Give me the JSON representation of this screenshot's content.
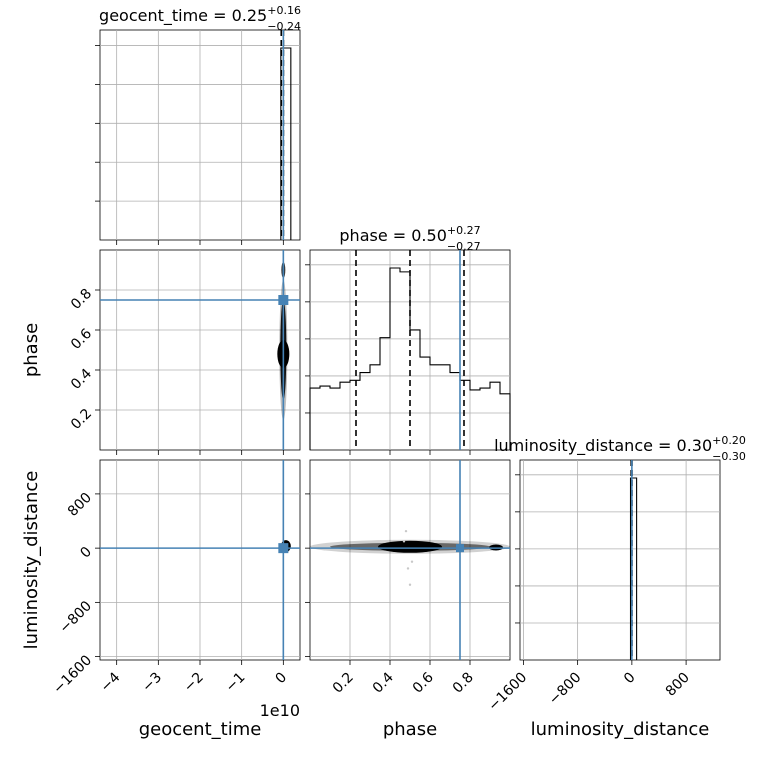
{
  "chart_data": {
    "type": "corner",
    "parameters": [
      "geocent_time",
      "phase",
      "luminosity_distance"
    ],
    "titles": [
      {
        "param": "geocent_time",
        "label": "geocent_time = 0.25",
        "plus": "+0.16",
        "minus": "−0.24"
      },
      {
        "param": "phase",
        "label": "phase = 0.50",
        "plus": "+0.27",
        "minus": "−0.27"
      },
      {
        "param": "luminosity_distance",
        "label": "luminosity_distance = 0.30",
        "plus": "+0.20",
        "minus": "−0.30"
      }
    ],
    "truths": {
      "geocent_time": 0,
      "phase": 0.75,
      "luminosity_distance": 0
    },
    "axes": {
      "geocent_time": {
        "range": [
          -4.4,
          0.4
        ],
        "ticks": [
          -4,
          -3,
          -2,
          -1,
          0
        ],
        "tick_labels": [
          "−4",
          "−3",
          "−2",
          "−1",
          "0"
        ],
        "offset_label": "1e10"
      },
      "phase": {
        "range": [
          0,
          1
        ],
        "ticks": [
          0.2,
          0.4,
          0.6,
          0.8
        ],
        "tick_labels": [
          "0.2",
          "0.4",
          "0.6",
          "0.8"
        ]
      },
      "luminosity_distance": {
        "range": [
          -1650,
          1300
        ],
        "ticks": [
          -1600,
          -800,
          0,
          800
        ],
        "tick_labels": [
          "−1600",
          "−800",
          "0",
          "800"
        ]
      }
    },
    "histograms": {
      "geocent_time": {
        "bin_edges": [
          -0.06,
          0.0,
          0.18
        ],
        "counts": [
          1.0,
          1.0
        ],
        "quantiles": [
          -0.05,
          0.0,
          0.0
        ]
      },
      "phase": {
        "bin_edges": [
          0,
          0.05,
          0.1,
          0.15,
          0.2,
          0.25,
          0.3,
          0.35,
          0.4,
          0.45,
          0.5,
          0.55,
          0.6,
          0.65,
          0.7,
          0.75,
          0.8,
          0.85,
          0.9,
          0.95,
          1.0
        ],
        "counts": [
          0.32,
          0.33,
          0.32,
          0.35,
          0.36,
          0.4,
          0.44,
          0.58,
          0.94,
          0.92,
          0.62,
          0.48,
          0.44,
          0.44,
          0.4,
          0.36,
          0.31,
          0.32,
          0.35,
          0.29
        ],
        "quantiles": [
          0.23,
          0.5,
          0.77
        ]
      },
      "luminosity_distance": {
        "bin_edges": [
          -20,
          0,
          70
        ],
        "counts": [
          1.0,
          1.0
        ],
        "quantiles": [
          -10,
          0,
          0
        ]
      }
    },
    "grid": true
  }
}
